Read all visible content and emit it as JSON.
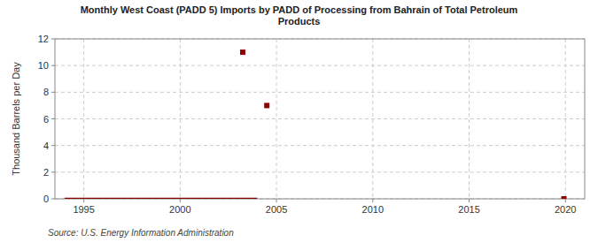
{
  "chart_data": {
    "type": "line",
    "title": "Monthly West Coast (PADD 5) Imports by PADD of Processing from Bahrain of Total Petroleum\nProducts",
    "ylabel": "Thousand Barrels per Day",
    "source": "Source: U.S. Energy Information Administration",
    "xlim": [
      1993.5,
      2021
    ],
    "ylim": [
      0,
      12
    ],
    "xticks": [
      1995,
      2000,
      2005,
      2010,
      2015,
      2020
    ],
    "yticks": [
      0,
      2,
      4,
      6,
      8,
      10,
      12
    ],
    "grid": true,
    "series": [
      {
        "type": "line",
        "color": "#8b0000",
        "x": [
          1994.0,
          2004.0
        ],
        "values": [
          0,
          0
        ]
      },
      {
        "type": "scatter",
        "color": "#8b0000",
        "marker": "square",
        "x": [
          2019.92,
          2003.25,
          2004.5
        ],
        "values": [
          0,
          11,
          7
        ]
      }
    ]
  }
}
